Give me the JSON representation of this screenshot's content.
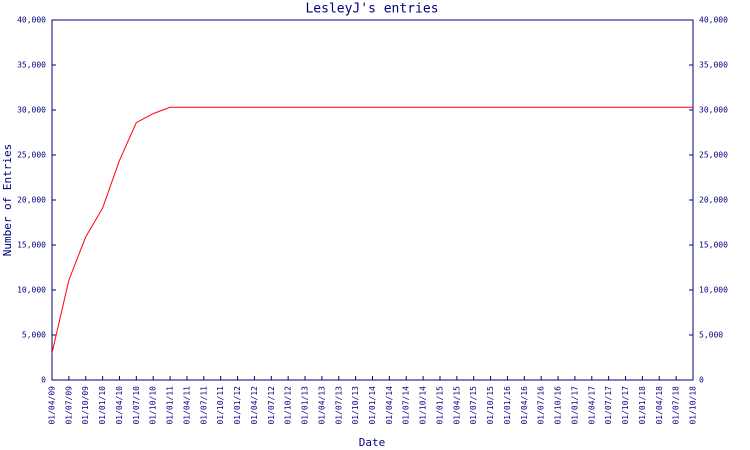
{
  "chart_data": {
    "type": "line",
    "title": "LesleyJ's entries",
    "x_label": "Date",
    "y_label": "Number of Entries",
    "categories": [
      "01/04/09",
      "01/07/09",
      "01/10/09",
      "01/01/10",
      "01/04/10",
      "01/07/10",
      "01/10/10",
      "01/01/11",
      "01/04/11",
      "01/07/11",
      "01/10/11",
      "01/01/12",
      "01/04/12",
      "01/07/12",
      "01/10/12",
      "01/01/13",
      "01/04/13",
      "01/07/13",
      "01/10/13",
      "01/01/14",
      "01/04/14",
      "01/07/14",
      "01/10/14",
      "01/01/15",
      "01/04/15",
      "01/07/15",
      "01/10/15",
      "01/01/16",
      "01/04/16",
      "01/07/16",
      "01/10/16",
      "01/01/17",
      "01/04/17",
      "01/07/17",
      "01/10/17",
      "01/01/18",
      "01/04/18",
      "01/07/18",
      "01/10/18"
    ],
    "series": [
      {
        "name": "Entries",
        "color": "#ff0000",
        "values": [
          3000,
          11100,
          15900,
          19100,
          24400,
          28600,
          29600,
          30300,
          30300,
          30300,
          30300,
          30300,
          30300,
          30300,
          30300,
          30300,
          30300,
          30300,
          30300,
          30300,
          30300,
          30300,
          30300,
          30300,
          30300,
          30300,
          30300,
          30300,
          30300,
          30300,
          30300,
          30300,
          30300,
          30300,
          30300,
          30300,
          30300,
          30300,
          30300
        ]
      }
    ],
    "ylim": [
      0,
      40000
    ],
    "yticks": [
      0,
      {
        "value": 5000,
        "label": "5,000"
      },
      {
        "value": 10000,
        "label": "10,000"
      },
      {
        "value": 15000,
        "label": "15,000"
      },
      {
        "value": 20000,
        "label": "20,000"
      },
      {
        "value": 25000,
        "label": "25,000"
      },
      {
        "value": 30000,
        "label": "30,000"
      },
      {
        "value": 35000,
        "label": "35,000"
      },
      {
        "value": 40000,
        "label": "40,000"
      }
    ],
    "axis_color": "#000080",
    "grid": false
  }
}
